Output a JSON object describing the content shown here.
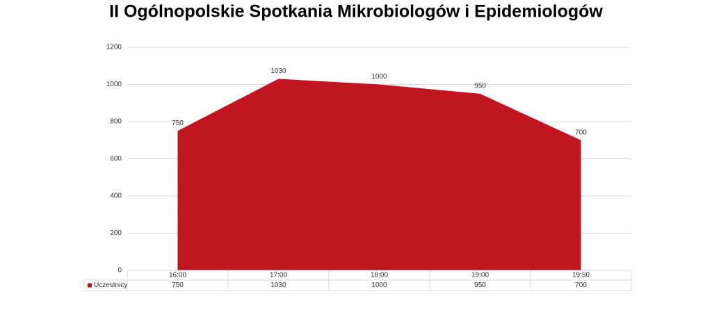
{
  "chart_data": {
    "type": "area",
    "title": "II Ogólnopolskie Spotkania Mikrobiologów i Epidemiologów",
    "categories": [
      "16:00",
      "17:00",
      "18:00",
      "19:00",
      "19:50"
    ],
    "series": [
      {
        "name": "Uczestnicy",
        "color": "#c0161f",
        "values": [
          750,
          1030,
          1000,
          950,
          700
        ]
      }
    ],
    "ylim": [
      0,
      1200
    ],
    "yticks": [
      0,
      200,
      400,
      600,
      800,
      1000,
      1200
    ],
    "grid": true,
    "data_labels": true,
    "data_table": true
  }
}
